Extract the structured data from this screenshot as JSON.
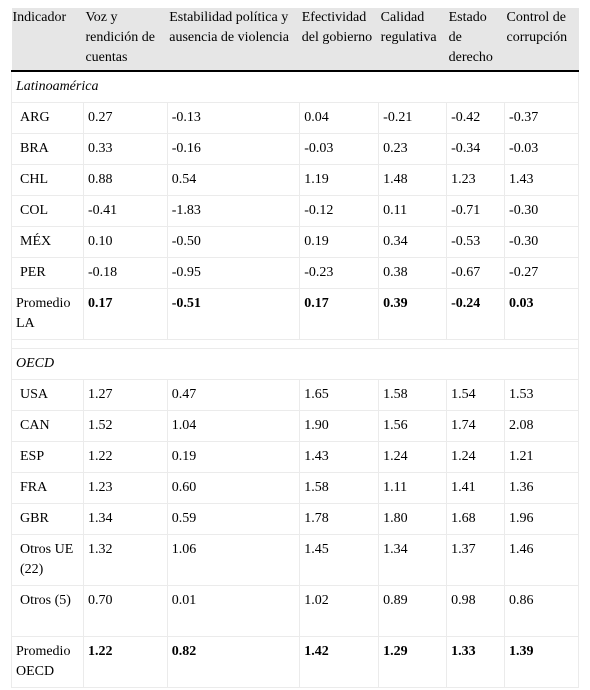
{
  "headers": [
    "Indicador",
    "Voz y rendición de cuentas",
    "Estabilidad política y ausencia de violencia",
    "Efectividad del gobierno",
    "Calidad regulativa",
    "Estado de derecho",
    "Control de corrupción"
  ],
  "sections": [
    {
      "title": "Latinoamérica",
      "rows": [
        {
          "label": "ARG",
          "values": [
            "0.27",
            "-0.13",
            "0.04",
            "-0.21",
            "-0.42",
            "-0.37"
          ]
        },
        {
          "label": "BRA",
          "values": [
            "0.33",
            "-0.16",
            "-0.03",
            "0.23",
            "-0.34",
            "-0.03"
          ]
        },
        {
          "label": "CHL",
          "values": [
            "0.88",
            "0.54",
            "1.19",
            "1.48",
            "1.23",
            "1.43"
          ]
        },
        {
          "label": "COL",
          "values": [
            "-0.41",
            "-1.83",
            "-0.12",
            "0.11",
            "-0.71",
            "-0.30"
          ]
        },
        {
          "label": "MÉX",
          "values": [
            "0.10",
            "-0.50",
            "0.19",
            "0.34",
            "-0.53",
            "-0.30"
          ]
        },
        {
          "label": "PER",
          "values": [
            "-0.18",
            "-0.95",
            "-0.23",
            "0.38",
            "-0.67",
            "-0.27"
          ]
        }
      ],
      "average": {
        "label": "Promedio LA",
        "values": [
          "0.17",
          "-0.51",
          "0.17",
          "0.39",
          "-0.24",
          "0.03"
        ]
      }
    },
    {
      "title": "OECD",
      "rows": [
        {
          "label": "USA",
          "values": [
            "1.27",
            "0.47",
            "1.65",
            "1.58",
            "1.54",
            "1.53"
          ]
        },
        {
          "label": "CAN",
          "values": [
            "1.52",
            "1.04",
            "1.90",
            "1.56",
            "1.74",
            "2.08"
          ]
        },
        {
          "label": "ESP",
          "values": [
            "1.22",
            "0.19",
            "1.43",
            "1.24",
            "1.24",
            "1.21"
          ]
        },
        {
          "label": "FRA",
          "values": [
            "1.23",
            "0.60",
            "1.58",
            "1.11",
            "1.41",
            "1.36"
          ]
        },
        {
          "label": "GBR",
          "values": [
            "1.34",
            "0.59",
            "1.78",
            "1.80",
            "1.68",
            "1.96"
          ]
        },
        {
          "label": "Otros UE (22)",
          "values": [
            "1.32",
            "1.06",
            "1.45",
            "1.34",
            "1.37",
            "1.46"
          ],
          "wrap": true
        },
        {
          "label": "Otros (5)",
          "values": [
            "0.70",
            "0.01",
            "1.02",
            "0.89",
            "0.98",
            "0.86"
          ],
          "wrap": true
        }
      ],
      "average": {
        "label": "Promedio OECD",
        "values": [
          "1.22",
          "0.82",
          "1.42",
          "1.29",
          "1.33",
          "1.39"
        ]
      }
    }
  ]
}
